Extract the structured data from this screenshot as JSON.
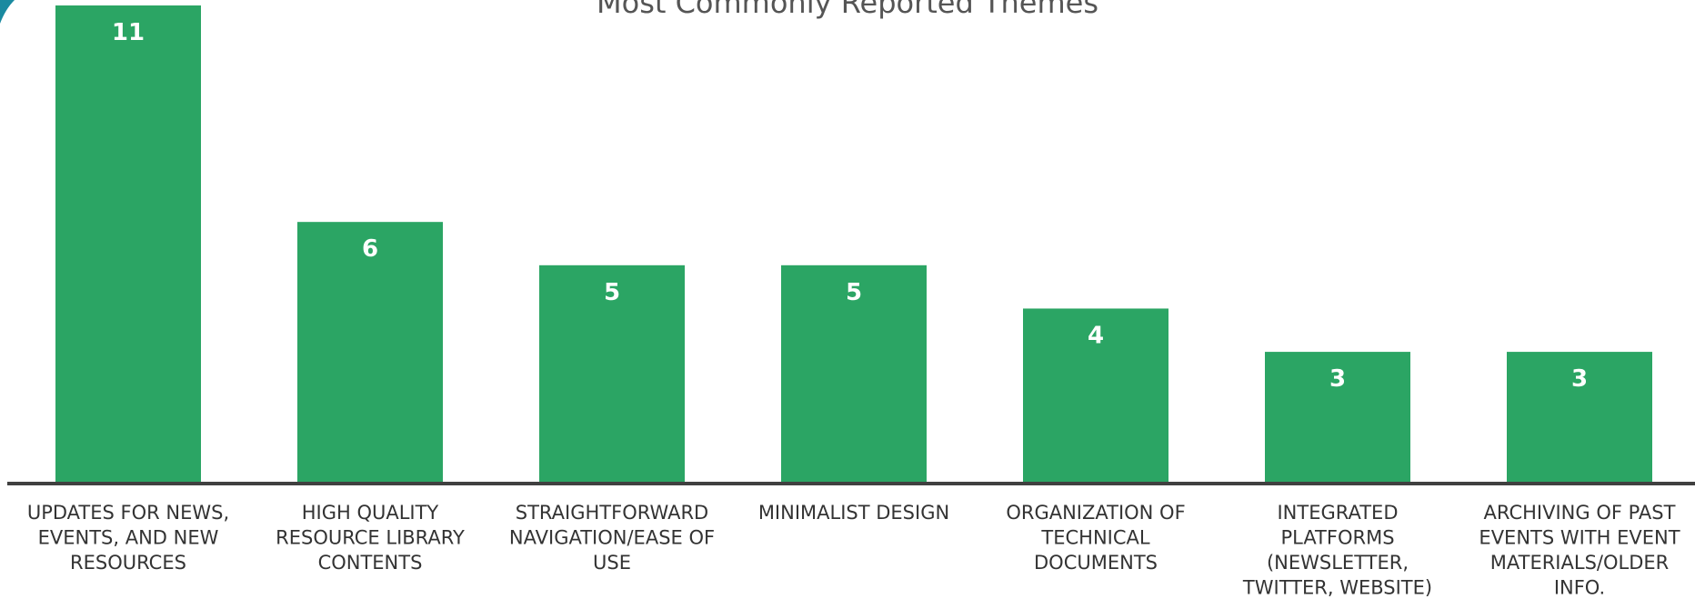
{
  "chart_data": {
    "type": "bar",
    "title": "Most Commonly Reported Themes",
    "categories": [
      "UPDATES FOR NEWS, EVENTS, AND NEW RESOURCES",
      "HIGH QUALITY RESOURCE LIBRARY CONTENTS",
      "STRAIGHTFORWARD NAVIGATION/EASE OF USE",
      "MINIMALIST DESIGN",
      "ORGANIZATION OF TECHNICAL DOCUMENTS",
      "INTEGRATED PLATFORMS (NEWSLETTER, TWITTER, WEBSITE)",
      "ARCHIVING OF PAST EVENTS WITH EVENT MATERIALS/OLDER INFO."
    ],
    "category_lines": [
      [
        "UPDATES FOR NEWS,",
        "EVENTS, AND NEW",
        "RESOURCES"
      ],
      [
        "HIGH QUALITY",
        "RESOURCE LIBRARY",
        "CONTENTS"
      ],
      [
        "STRAIGHTFORWARD",
        "NAVIGATION/EASE OF",
        "USE"
      ],
      [
        "MINIMALIST DESIGN"
      ],
      [
        "ORGANIZATION OF",
        "TECHNICAL",
        "DOCUMENTS"
      ],
      [
        "INTEGRATED",
        "PLATFORMS",
        "(NEWSLETTER,",
        "TWITTER, WEBSITE)"
      ],
      [
        "ARCHIVING OF PAST",
        "EVENTS WITH EVENT",
        "MATERIALS/OLDER",
        "INFO."
      ]
    ],
    "values": [
      11,
      6,
      5,
      5,
      4,
      3,
      3
    ],
    "xlabel": "",
    "ylabel": "",
    "ylim": [
      0,
      11
    ],
    "grid": false,
    "legend": "none",
    "data_labels": "inside-top",
    "colors": {
      "bar": "#2ba564",
      "axis": "#404040",
      "label": "#ffffff",
      "accent": "#1a8aa0"
    }
  }
}
